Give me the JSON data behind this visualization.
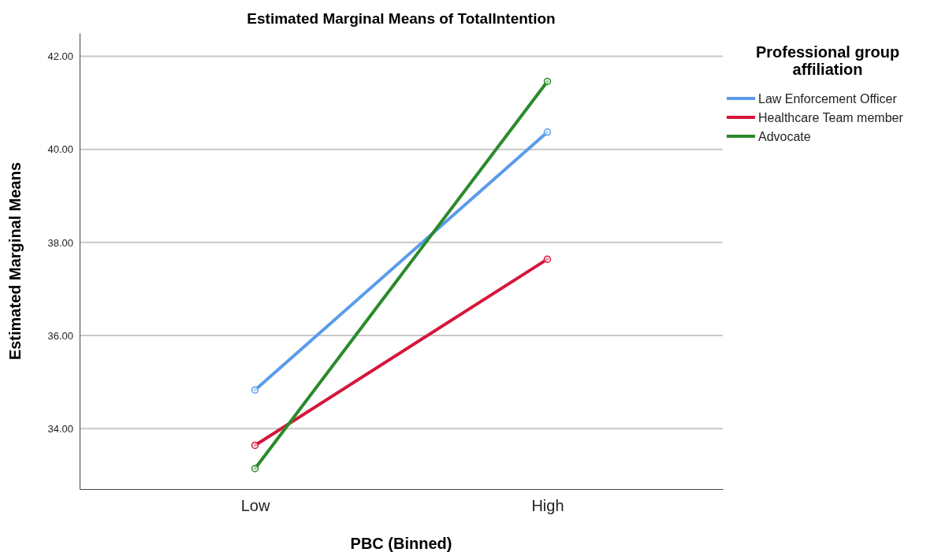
{
  "chart_data": {
    "type": "line",
    "title": "Estimated Marginal Means of TotalIntention",
    "xlabel": "PBC (Binned)",
    "ylabel": "Estimated Marginal Means",
    "legend_title": "Professional group affiliation",
    "categories": [
      "Low",
      "High"
    ],
    "series": [
      {
        "name": "Law Enforcement Officer",
        "color": "#5b9bea",
        "values": [
          34.83,
          40.37
        ]
      },
      {
        "name": "Healthcare Team member",
        "color": "#d6163b",
        "values": [
          33.64,
          37.64
        ]
      },
      {
        "name": "Advocate",
        "color": "#2a8a2a",
        "values": [
          33.14,
          41.46
        ]
      }
    ],
    "ylim": [
      32.7,
      42.5
    ],
    "yticks": [
      {
        "value": 34,
        "label": "34.00"
      },
      {
        "value": 36,
        "label": "36.00"
      },
      {
        "value": 38,
        "label": "38.00"
      },
      {
        "value": 40,
        "label": "40.00"
      },
      {
        "value": 42,
        "label": "42.00"
      }
    ],
    "grid": "y",
    "legend": "top right",
    "marker": "circle",
    "line_style": "solid"
  }
}
